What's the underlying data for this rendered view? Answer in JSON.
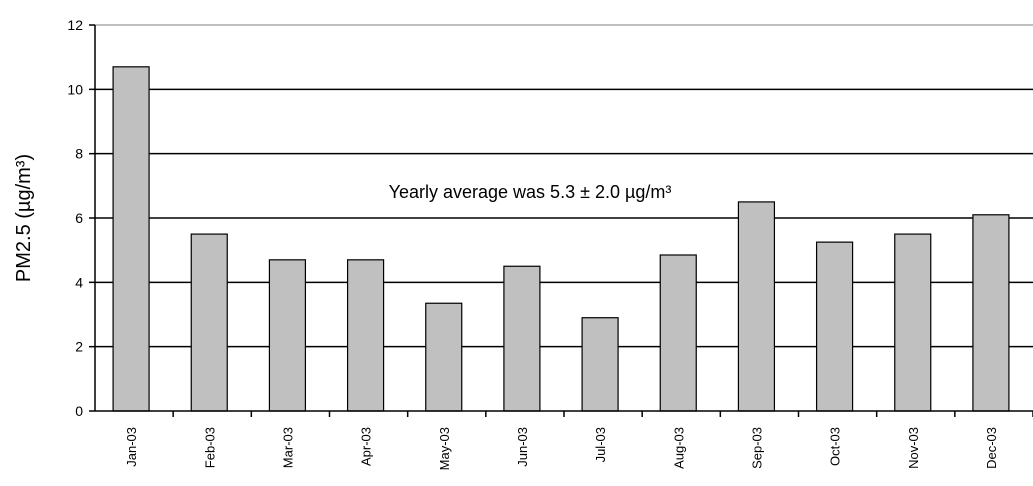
{
  "chart_data": {
    "type": "bar",
    "categories": [
      "Jan-03",
      "Feb-03",
      "Mar-03",
      "Apr-03",
      "May-03",
      "Jun-03",
      "Jul-03",
      "Aug-03",
      "Sep-03",
      "Oct-03",
      "Nov-03",
      "Dec-03"
    ],
    "values": [
      10.7,
      5.5,
      4.7,
      4.7,
      3.35,
      4.5,
      2.9,
      4.85,
      6.5,
      5.25,
      5.5,
      6.1
    ],
    "ylabel": "PM2.5 (µg/m³)",
    "ylim": [
      0,
      12
    ],
    "yticks": [
      0,
      2,
      4,
      6,
      8,
      10,
      12
    ],
    "annotation": "Yearly average was 5.3 ± 2.0 µg/m³",
    "grid": true,
    "colors": {
      "bar": "#c0c0c0",
      "bar_edge": "#000000",
      "gridline": "#000000"
    }
  }
}
